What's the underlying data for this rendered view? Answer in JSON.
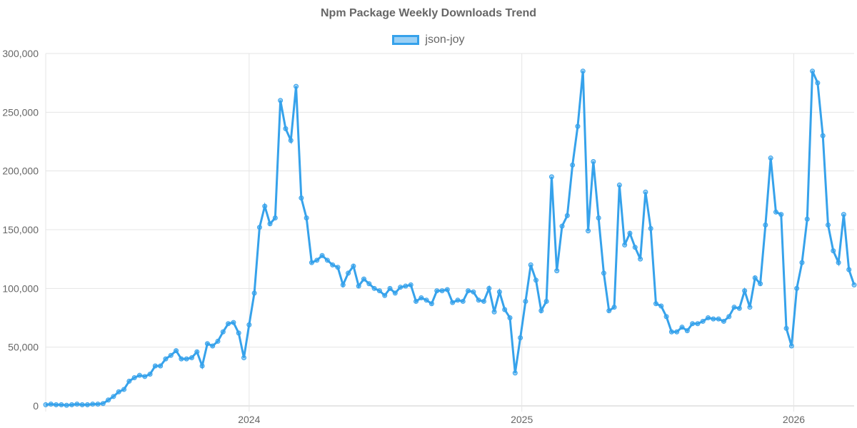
{
  "chart_data": {
    "type": "line",
    "title": "Npm Package Weekly Downloads Trend",
    "legend_position": "top",
    "grid": true,
    "ylim": [
      0,
      300000
    ],
    "y_ticks": [
      "0",
      "50,000",
      "100,000",
      "150,000",
      "200,000",
      "250,000",
      "300,000"
    ],
    "x_ticks": [
      {
        "label": "2024",
        "date": "2024-01-01"
      },
      {
        "label": "2025",
        "date": "2025-01-01"
      },
      {
        "label": "2026",
        "date": "2026-01-01"
      }
    ],
    "colors": {
      "line": "#36a2eb",
      "fill": "rgba(54,162,235,0.5)"
    },
    "series": [
      {
        "name": "json-joy",
        "x": [
          "2023-04-03",
          "2023-04-10",
          "2023-04-17",
          "2023-04-24",
          "2023-05-01",
          "2023-05-08",
          "2023-05-15",
          "2023-05-22",
          "2023-05-29",
          "2023-06-05",
          "2023-06-12",
          "2023-06-19",
          "2023-06-26",
          "2023-07-03",
          "2023-07-10",
          "2023-07-17",
          "2023-07-24",
          "2023-07-31",
          "2023-08-07",
          "2023-08-14",
          "2023-08-21",
          "2023-08-28",
          "2023-09-04",
          "2023-09-11",
          "2023-09-18",
          "2023-09-25",
          "2023-10-02",
          "2023-10-09",
          "2023-10-16",
          "2023-10-23",
          "2023-10-30",
          "2023-11-06",
          "2023-11-13",
          "2023-11-20",
          "2023-11-27",
          "2023-12-04",
          "2023-12-11",
          "2023-12-18",
          "2023-12-25",
          "2024-01-01",
          "2024-01-08",
          "2024-01-15",
          "2024-01-22",
          "2024-01-29",
          "2024-02-05",
          "2024-02-12",
          "2024-02-19",
          "2024-02-26",
          "2024-03-04",
          "2024-03-11",
          "2024-03-18",
          "2024-03-25",
          "2024-04-01",
          "2024-04-08",
          "2024-04-15",
          "2024-04-22",
          "2024-04-29",
          "2024-05-06",
          "2024-05-13",
          "2024-05-20",
          "2024-05-27",
          "2024-06-03",
          "2024-06-10",
          "2024-06-17",
          "2024-06-24",
          "2024-07-01",
          "2024-07-08",
          "2024-07-15",
          "2024-07-22",
          "2024-07-29",
          "2024-08-05",
          "2024-08-12",
          "2024-08-19",
          "2024-08-26",
          "2024-09-02",
          "2024-09-09",
          "2024-09-16",
          "2024-09-23",
          "2024-09-30",
          "2024-10-07",
          "2024-10-14",
          "2024-10-21",
          "2024-10-28",
          "2024-11-04",
          "2024-11-11",
          "2024-11-18",
          "2024-11-25",
          "2024-12-02",
          "2024-12-09",
          "2024-12-16",
          "2024-12-23",
          "2024-12-30",
          "2025-01-06",
          "2025-01-13",
          "2025-01-20",
          "2025-01-27",
          "2025-02-03",
          "2025-02-10",
          "2025-02-17",
          "2025-02-24",
          "2025-03-03",
          "2025-03-10",
          "2025-03-17",
          "2025-03-24",
          "2025-03-31",
          "2025-04-07",
          "2025-04-14",
          "2025-04-21",
          "2025-04-28",
          "2025-05-05",
          "2025-05-12",
          "2025-05-19",
          "2025-05-26",
          "2025-06-02",
          "2025-06-09",
          "2025-06-16",
          "2025-06-23",
          "2025-06-30",
          "2025-07-07",
          "2025-07-14",
          "2025-07-21",
          "2025-07-28",
          "2025-08-04",
          "2025-08-11",
          "2025-08-18",
          "2025-08-25",
          "2025-09-01",
          "2025-09-08",
          "2025-09-15",
          "2025-09-22",
          "2025-09-29",
          "2025-10-06",
          "2025-10-13",
          "2025-10-20",
          "2025-10-27",
          "2025-11-03",
          "2025-11-10",
          "2025-11-17",
          "2025-11-24",
          "2025-12-01",
          "2025-12-08",
          "2025-12-15",
          "2025-12-22",
          "2025-12-29",
          "2026-01-05",
          "2026-01-12",
          "2026-01-19",
          "2026-01-26",
          "2026-02-02",
          "2026-02-09",
          "2026-02-16",
          "2026-02-23",
          "2026-03-02",
          "2026-03-09",
          "2026-03-16",
          "2026-03-23"
        ],
        "values": [
          1000,
          1500,
          1000,
          1000,
          500,
          1000,
          1500,
          1000,
          1000,
          1500,
          1500,
          2000,
          5000,
          8000,
          12000,
          14000,
          21000,
          24000,
          26000,
          25000,
          27000,
          34000,
          34000,
          40000,
          43000,
          47000,
          40000,
          40000,
          41000,
          46000,
          34000,
          53000,
          51000,
          55000,
          63000,
          70000,
          71000,
          62000,
          41000,
          69000,
          96000,
          152000,
          170000,
          155000,
          160000,
          260000,
          236000,
          226000,
          272000,
          177000,
          160000,
          122000,
          124000,
          128000,
          124000,
          120000,
          118000,
          103000,
          113000,
          119000,
          102000,
          108000,
          104000,
          100000,
          98000,
          94000,
          100000,
          96000,
          101000,
          102000,
          103000,
          89000,
          92000,
          90000,
          87000,
          98000,
          98000,
          99000,
          88000,
          90000,
          89000,
          98000,
          97000,
          90000,
          89000,
          100000,
          80000,
          97000,
          82000,
          75000,
          28000,
          58000,
          89000,
          120000,
          107000,
          81000,
          89000,
          195000,
          115000,
          153000,
          162000,
          205000,
          238000,
          285000,
          149000,
          208000,
          160000,
          113000,
          81000,
          84000,
          188000,
          137000,
          147000,
          135000,
          125000,
          182000,
          151000,
          87000,
          85000,
          76000,
          63000,
          63000,
          67000,
          64000,
          70000,
          70000,
          72000,
          75000,
          74000,
          74000,
          72000,
          76000,
          84000,
          83000,
          98000,
          84000,
          109000,
          104000,
          154000,
          211000,
          165000,
          163000,
          66000,
          51000,
          100000,
          122000,
          159000,
          285000,
          275000,
          230000,
          154000,
          132000,
          122000,
          163000,
          116000,
          103000
        ]
      }
    ]
  }
}
